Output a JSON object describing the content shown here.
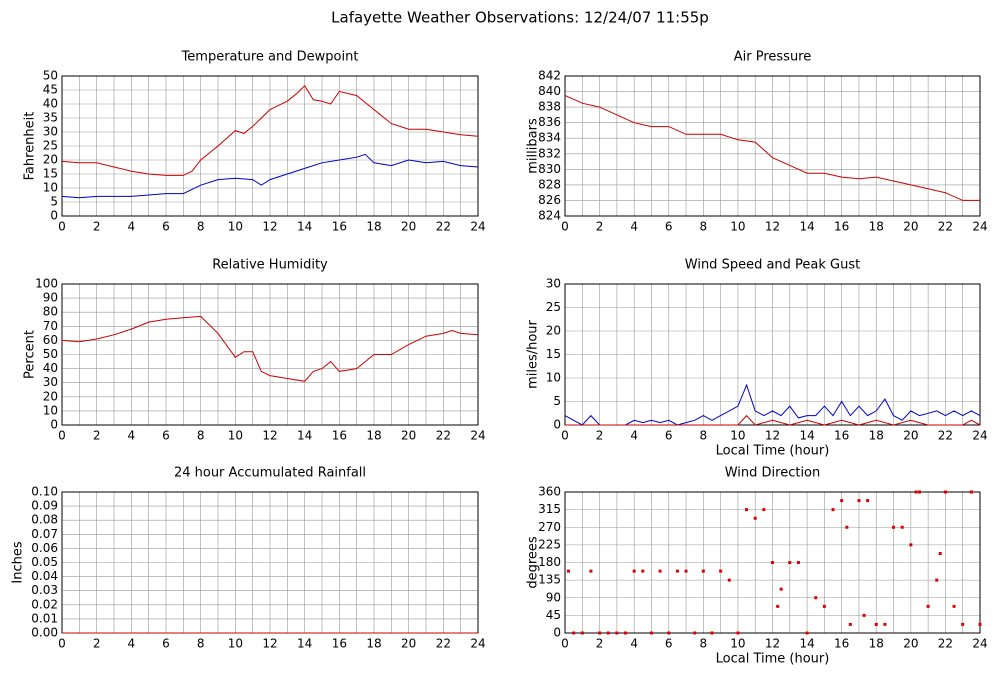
{
  "title": "Lafayette Weather Observations: 12/24/07 11:55p",
  "chart_data": [
    {
      "type": "line",
      "title": "Temperature and Dewpoint",
      "ylabel": "Fahrenheit",
      "xlim": [
        0,
        24
      ],
      "xticks": [
        0,
        2,
        4,
        6,
        8,
        10,
        12,
        14,
        16,
        18,
        20,
        22,
        24
      ],
      "xgrid_minor": [
        1,
        3,
        5,
        7,
        9,
        11,
        13,
        15,
        17,
        19,
        21,
        23
      ],
      "ylim": [
        0,
        50
      ],
      "yticks": [
        0,
        5,
        10,
        15,
        20,
        25,
        30,
        35,
        40,
        45,
        50
      ],
      "grid": true,
      "series": [
        {
          "color": "#cc0000",
          "x": [
            0,
            1,
            2,
            3,
            4,
            5,
            6,
            7,
            7.5,
            8,
            9,
            10,
            10.5,
            11,
            12,
            13,
            13.5,
            14,
            14.5,
            15,
            15.5,
            16,
            17,
            18,
            19,
            20,
            21,
            22,
            23,
            24
          ],
          "values": [
            19.5,
            19,
            19,
            17.5,
            16,
            15,
            14.5,
            14.5,
            16,
            20,
            25,
            30.5,
            29.5,
            32,
            38,
            41,
            43.5,
            46.5,
            41.5,
            41,
            40,
            44.5,
            43,
            38,
            33,
            31,
            31,
            30,
            29,
            28.5
          ]
        },
        {
          "color": "#0000cc",
          "x": [
            0,
            1,
            2,
            3,
            4,
            5,
            6,
            7,
            8,
            9,
            10,
            11,
            11.5,
            12,
            13,
            14,
            15,
            16,
            17,
            17.5,
            18,
            19,
            20,
            21,
            22,
            23,
            24
          ],
          "values": [
            7,
            6.5,
            7,
            7,
            7,
            7.5,
            8,
            8,
            11,
            13,
            13.5,
            13,
            11,
            13,
            15,
            17,
            19,
            20,
            21,
            22,
            19,
            18,
            20,
            19,
            19.5,
            18,
            17.5
          ]
        }
      ]
    },
    {
      "type": "line",
      "title": "Air Pressure",
      "ylabel": "millibars",
      "xlim": [
        0,
        24
      ],
      "xticks": [
        0,
        2,
        4,
        6,
        8,
        10,
        12,
        14,
        16,
        18,
        20,
        22,
        24
      ],
      "xgrid_minor": [
        1,
        3,
        5,
        7,
        9,
        11,
        13,
        15,
        17,
        19,
        21,
        23
      ],
      "ylim": [
        824,
        842
      ],
      "yticks": [
        824,
        826,
        828,
        830,
        832,
        834,
        836,
        838,
        840,
        842
      ],
      "grid": true,
      "series": [
        {
          "color": "#cc0000",
          "x": [
            0,
            1,
            2,
            3,
            4,
            5,
            6,
            7,
            8,
            9,
            10,
            11,
            12,
            13,
            14,
            15,
            16,
            17,
            18,
            19,
            20,
            21,
            22,
            23,
            24
          ],
          "values": [
            839.5,
            838.5,
            838,
            837,
            836,
            835.5,
            835.5,
            834.5,
            834.5,
            834.5,
            833.8,
            833.5,
            831.5,
            830.5,
            829.5,
            829.5,
            829,
            828.8,
            829,
            828.5,
            828,
            827.5,
            827,
            826,
            826
          ]
        }
      ]
    },
    {
      "type": "line",
      "title": "Relative Humidity",
      "ylabel": "Percent",
      "xlim": [
        0,
        24
      ],
      "xticks": [
        0,
        2,
        4,
        6,
        8,
        10,
        12,
        14,
        16,
        18,
        20,
        22,
        24
      ],
      "xgrid_minor": [
        1,
        3,
        5,
        7,
        9,
        11,
        13,
        15,
        17,
        19,
        21,
        23
      ],
      "ylim": [
        0,
        100
      ],
      "yticks": [
        0,
        10,
        20,
        30,
        40,
        50,
        60,
        70,
        80,
        90,
        100
      ],
      "grid": true,
      "series": [
        {
          "color": "#cc0000",
          "x": [
            0,
            1,
            2,
            3,
            4,
            5,
            6,
            7,
            8,
            9,
            10,
            10.5,
            11,
            11.5,
            12,
            13,
            14,
            14.5,
            15,
            15.5,
            16,
            17,
            18,
            19,
            20,
            21,
            22,
            22.5,
            23,
            24
          ],
          "values": [
            60,
            59,
            61,
            64,
            68,
            73,
            75,
            76,
            77,
            65,
            48,
            52,
            52,
            38,
            35,
            33,
            31,
            38,
            40,
            45,
            38,
            40,
            50,
            50,
            57,
            63,
            65,
            67,
            65,
            64
          ]
        }
      ]
    },
    {
      "type": "line",
      "title": "Wind Speed and Peak Gust",
      "ylabel": "miles/hour",
      "xlabel": "Local Time (hour)",
      "xlim": [
        0,
        24
      ],
      "xticks": [
        0,
        2,
        4,
        6,
        8,
        10,
        12,
        14,
        16,
        18,
        20,
        22,
        24
      ],
      "xgrid_minor": [
        1,
        3,
        5,
        7,
        9,
        11,
        13,
        15,
        17,
        19,
        21,
        23
      ],
      "ylim": [
        0,
        30
      ],
      "yticks": [
        0,
        5,
        10,
        15,
        20,
        25,
        30
      ],
      "grid": true,
      "series": [
        {
          "color": "#0000cc",
          "x": [
            0,
            0.5,
            1,
            1.5,
            2,
            2.5,
            3,
            3.5,
            4,
            4.5,
            5,
            5.5,
            6,
            6.5,
            7,
            7.5,
            8,
            8.5,
            9,
            9.5,
            10,
            10.5,
            11,
            11.5,
            12,
            12.5,
            13,
            13.5,
            14,
            14.5,
            15,
            15.5,
            16,
            16.5,
            17,
            17.5,
            18,
            18.5,
            19,
            19.5,
            20,
            20.5,
            21,
            21.5,
            22,
            22.5,
            23,
            23.5,
            24
          ],
          "values": [
            2,
            1,
            0,
            2,
            0,
            0,
            0,
            0,
            1,
            0.5,
            1,
            0.5,
            1,
            0,
            0.5,
            1,
            2,
            1,
            2,
            3,
            4,
            8.5,
            3,
            2,
            3,
            2,
            4,
            1.5,
            2,
            2,
            4,
            2,
            5,
            2,
            4,
            2,
            3,
            5.5,
            2,
            1,
            3,
            2,
            2.5,
            3,
            2,
            3,
            2,
            3,
            2
          ]
        },
        {
          "color": "#cc0000",
          "x": [
            0,
            10,
            10.5,
            11,
            12,
            13,
            14,
            15,
            16,
            17,
            18,
            19,
            20,
            21,
            23,
            23.5,
            24
          ],
          "values": [
            0,
            0,
            2,
            0,
            1,
            0,
            1,
            0,
            1,
            0,
            1,
            0,
            1,
            0,
            0,
            1,
            0
          ]
        }
      ]
    },
    {
      "type": "line",
      "title": "24 hour Accumulated Rainfall",
      "ylabel": "Inches",
      "xlim": [
        0,
        24
      ],
      "xticks": [
        0,
        2,
        4,
        6,
        8,
        10,
        12,
        14,
        16,
        18,
        20,
        22,
        24
      ],
      "xgrid_minor": [
        1,
        3,
        5,
        7,
        9,
        11,
        13,
        15,
        17,
        19,
        21,
        23
      ],
      "ylim": [
        0,
        0.1
      ],
      "yticks": [
        {
          "value": 0,
          "label": "0.00"
        },
        {
          "value": 0.01,
          "label": "0.01"
        },
        {
          "value": 0.02,
          "label": "0.02"
        },
        {
          "value": 0.03,
          "label": "0.03"
        },
        {
          "value": 0.04,
          "label": "0.04"
        },
        {
          "value": 0.05,
          "label": "0.05"
        },
        {
          "value": 0.06,
          "label": "0.06"
        },
        {
          "value": 0.07,
          "label": "0.07"
        },
        {
          "value": 0.08,
          "label": "0.08"
        },
        {
          "value": 0.09,
          "label": "0.09"
        },
        {
          "value": 0.1,
          "label": "0.10"
        }
      ],
      "grid": true,
      "series": [
        {
          "color": "#cc0000",
          "x": [
            0,
            24
          ],
          "values": [
            0,
            0
          ]
        }
      ]
    },
    {
      "type": "scatter",
      "title": "Wind Direction",
      "ylabel": "degrees",
      "xlabel": "Local Time (hour)",
      "xlim": [
        0,
        24
      ],
      "xticks": [
        0,
        2,
        4,
        6,
        8,
        10,
        12,
        14,
        16,
        18,
        20,
        22,
        24
      ],
      "xgrid_minor": [
        1,
        3,
        5,
        7,
        9,
        11,
        13,
        15,
        17,
        19,
        21,
        23
      ],
      "ylim": [
        0,
        360
      ],
      "yticks": [
        0,
        45,
        90,
        135,
        180,
        225,
        270,
        315,
        360
      ],
      "grid": true,
      "series": [
        {
          "color": "#dd0000",
          "x": [
            0.2,
            0.5,
            1,
            1.5,
            2,
            2.5,
            3,
            3.5,
            4,
            4.5,
            5,
            5.5,
            6,
            6.5,
            7,
            7.5,
            8,
            8.5,
            9,
            9.5,
            10,
            10.5,
            11,
            11.5,
            12,
            12.3,
            12.5,
            13,
            13.5,
            14,
            14.5,
            15,
            15.5,
            16,
            16.3,
            16.5,
            17,
            17.3,
            17.5,
            18,
            18.5,
            19,
            19.5,
            20,
            20.3,
            20.5,
            21,
            21.5,
            21.7,
            22,
            22.5,
            23,
            23.5,
            24
          ],
          "values": [
            158,
            0,
            0,
            158,
            0,
            0,
            0,
            0,
            158,
            158,
            0,
            158,
            0,
            158,
            158,
            0,
            158,
            0,
            158,
            135,
            0,
            315,
            293,
            315,
            180,
            68,
            112,
            180,
            180,
            0,
            90,
            68,
            315,
            338,
            270,
            22,
            338,
            45,
            338,
            22,
            22,
            270,
            270,
            225,
            360,
            360,
            68,
            135,
            203,
            360,
            68,
            22,
            360,
            22
          ]
        }
      ]
    }
  ]
}
